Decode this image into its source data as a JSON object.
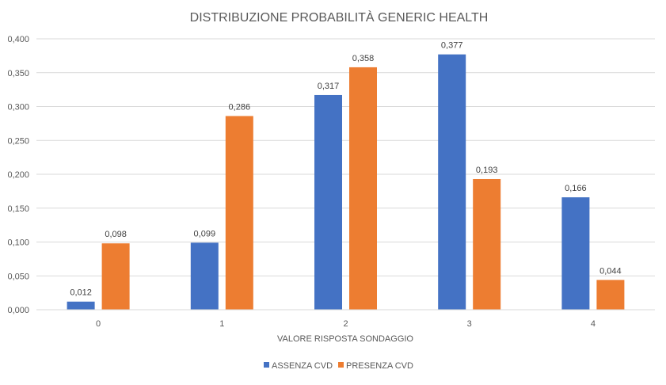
{
  "chart_data": {
    "type": "bar",
    "title": "DISTRIBUZIONE PROBABILITÀ GENERIC HEALTH",
    "xlabel": "VALORE RISPOSTA SONDAGGIO",
    "ylabel": "",
    "categories": [
      "0",
      "1",
      "2",
      "3",
      "4"
    ],
    "ylim": [
      0,
      0.4
    ],
    "yticks": [
      "0,000",
      "0,050",
      "0,100",
      "0,150",
      "0,200",
      "0,250",
      "0,300",
      "0,350",
      "0,400"
    ],
    "ytick_values": [
      0,
      0.05,
      0.1,
      0.15,
      0.2,
      0.25,
      0.3,
      0.35,
      0.4
    ],
    "grid": true,
    "legend_position": "bottom",
    "series": [
      {
        "name": "ASSENZA CVD",
        "color": "#4472C4",
        "values": [
          0.012,
          0.099,
          0.317,
          0.377,
          0.166
        ],
        "labels": [
          "0,012",
          "0,099",
          "0,317",
          "0,377",
          "0,166"
        ]
      },
      {
        "name": "PRESENZA CVD",
        "color": "#ED7D31",
        "values": [
          0.098,
          0.286,
          0.358,
          0.193,
          0.044
        ],
        "labels": [
          "0,098",
          "0,286",
          "0,358",
          "0,193",
          "0,044"
        ]
      }
    ]
  }
}
